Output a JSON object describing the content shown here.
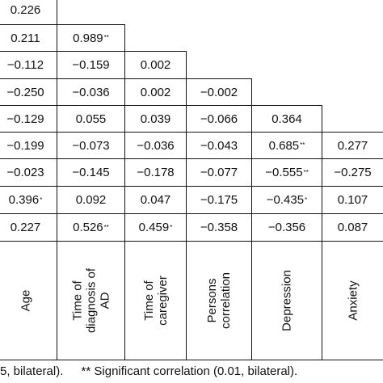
{
  "table": {
    "rows": [
      [
        "0.226"
      ],
      [
        "0.211",
        "0.989**"
      ],
      [
        "-0.112",
        "-0.159",
        "0.002"
      ],
      [
        "-0.250",
        "-0.036",
        "0.002",
        "-0.002"
      ],
      [
        "-0.129",
        "0.055",
        "0.039",
        "-0.066",
        "0.364"
      ],
      [
        "-0.199",
        "-0.073",
        "-0.036",
        "-0.043",
        "0.685**",
        "0.277"
      ],
      [
        "-0.023",
        "-0.145",
        "-0.178",
        "-0.077",
        "-0.555**",
        "-0.275"
      ],
      [
        "0.396*",
        "0.092",
        "0.047",
        "-0.175",
        "-0.435*",
        "0.107"
      ],
      [
        "0.227",
        "0.526**",
        "0.459*",
        "-0.358",
        "-0.356",
        "0.087"
      ]
    ],
    "column_headers": [
      [
        "Age"
      ],
      [
        "Time of",
        "diagnosis of",
        "AD"
      ],
      [
        "Time of",
        "caregiver"
      ],
      [
        "Persons",
        "correlation"
      ],
      [
        "Depression"
      ],
      [
        "Anxiety"
      ]
    ]
  },
  "footer": {
    "note_left": "5, bilateral).",
    "note_right": "** Significant correlation (0.01, bilateral)."
  }
}
